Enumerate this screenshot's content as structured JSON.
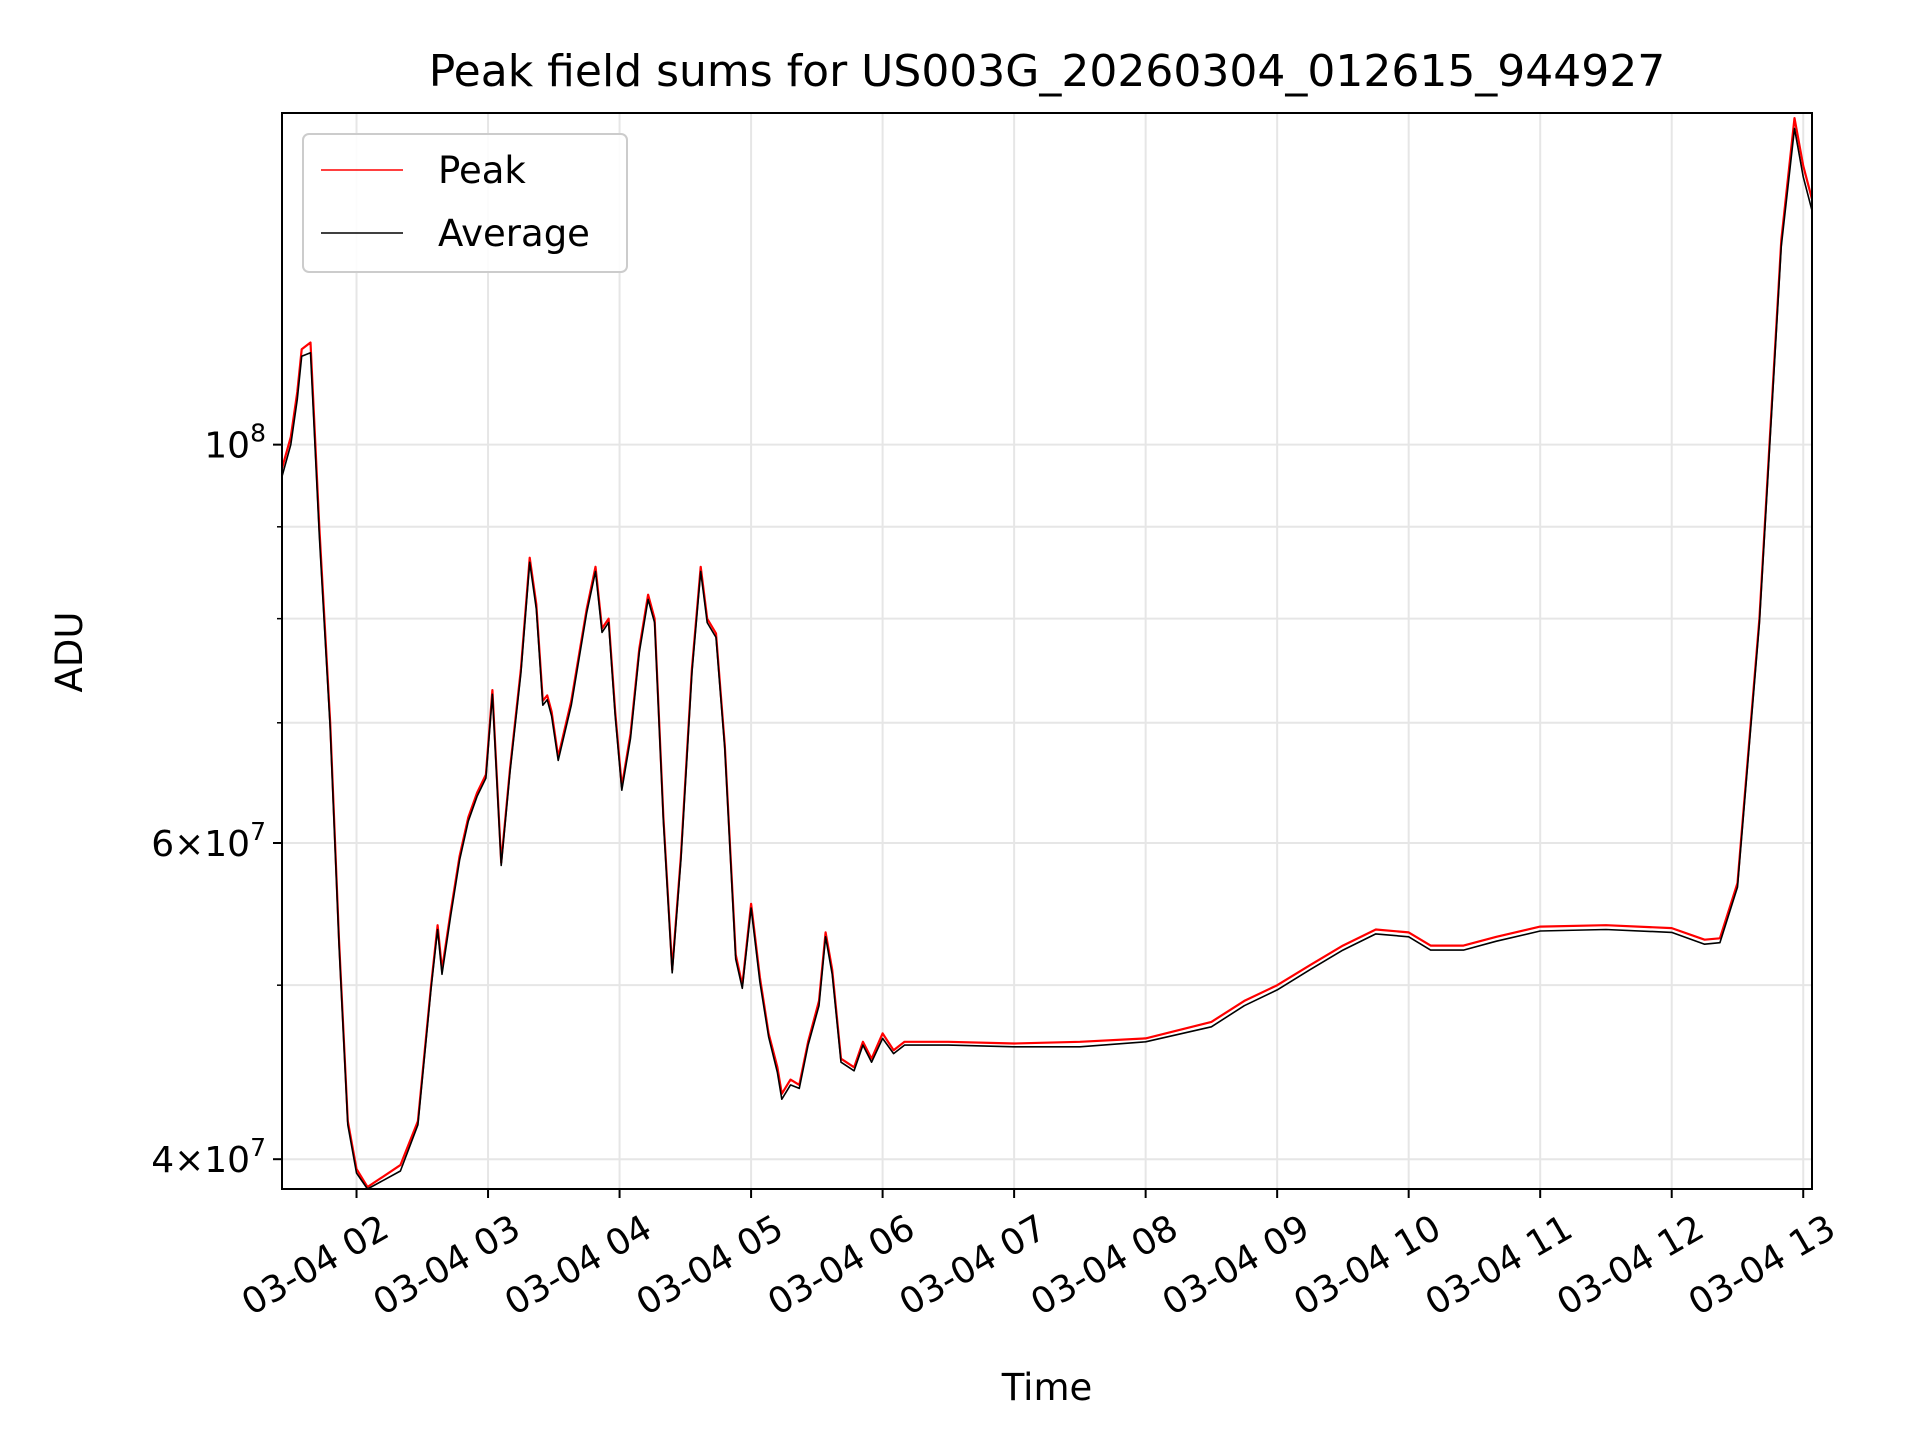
{
  "chart_data": {
    "type": "line",
    "title": "Peak field sums for US003G_20260304_012615_944927",
    "xlabel": "Time",
    "ylabel": "ADU",
    "y_scale": "log",
    "ylim": [
      38500000,
      153000000
    ],
    "xlim": [
      "2026-03-04 01:26",
      "2026-03-04 13:04"
    ],
    "grid": true,
    "legend_position": "top-left",
    "x_ticks": [
      {
        "t": "2026-03-04 02:00",
        "label": "03-04 02"
      },
      {
        "t": "2026-03-04 03:00",
        "label": "03-04 03"
      },
      {
        "t": "2026-03-04 04:00",
        "label": "03-04 04"
      },
      {
        "t": "2026-03-04 05:00",
        "label": "03-04 05"
      },
      {
        "t": "2026-03-04 06:00",
        "label": "03-04 06"
      },
      {
        "t": "2026-03-04 07:00",
        "label": "03-04 07"
      },
      {
        "t": "2026-03-04 08:00",
        "label": "03-04 08"
      },
      {
        "t": "2026-03-04 09:00",
        "label": "03-04 09"
      },
      {
        "t": "2026-03-04 10:00",
        "label": "03-04 10"
      },
      {
        "t": "2026-03-04 11:00",
        "label": "03-04 11"
      },
      {
        "t": "2026-03-04 12:00",
        "label": "03-04 12"
      },
      {
        "t": "2026-03-04 13:00",
        "label": "03-04 13"
      }
    ],
    "y_major_ticks": [
      {
        "value": 40000000,
        "base": "4",
        "exp": "7"
      },
      {
        "value": 60000000,
        "base": "6",
        "exp": "7"
      },
      {
        "value": 100000000,
        "base": "",
        "exp": "8"
      }
    ],
    "y_minor_ticks": [
      50000000,
      70000000,
      80000000,
      90000000
    ],
    "series": [
      {
        "name": "Peak",
        "color": "#ff0000",
        "points": [
          [
            "2026-03-04 01:26",
            97000000
          ],
          [
            "2026-03-04 01:30",
            101000000
          ],
          [
            "2026-03-04 01:33",
            107000000
          ],
          [
            "2026-03-04 01:35",
            113000000
          ],
          [
            "2026-03-04 01:39",
            114000000
          ],
          [
            "2026-03-04 01:43",
            90000000
          ],
          [
            "2026-03-04 01:48",
            70000000
          ],
          [
            "2026-03-04 01:52",
            53000000
          ],
          [
            "2026-03-04 01:56",
            42000000
          ],
          [
            "2026-03-04 02:00",
            39500000
          ],
          [
            "2026-03-04 02:05",
            38600000
          ],
          [
            "2026-03-04 02:20",
            39700000
          ],
          [
            "2026-03-04 02:28",
            42000000
          ],
          [
            "2026-03-04 02:34",
            50000000
          ],
          [
            "2026-03-04 02:37",
            54000000
          ],
          [
            "2026-03-04 02:39",
            51000000
          ],
          [
            "2026-03-04 02:43",
            55000000
          ],
          [
            "2026-03-04 02:47",
            59000000
          ],
          [
            "2026-03-04 02:51",
            62000000
          ],
          [
            "2026-03-04 02:55",
            64000000
          ],
          [
            "2026-03-04 02:59",
            65500000
          ],
          [
            "2026-03-04 03:02",
            73000000
          ],
          [
            "2026-03-04 03:06",
            58500000
          ],
          [
            "2026-03-04 03:10",
            66000000
          ],
          [
            "2026-03-04 03:15",
            75000000
          ],
          [
            "2026-03-04 03:19",
            86500000
          ],
          [
            "2026-03-04 03:22",
            81500000
          ],
          [
            "2026-03-04 03:25",
            72000000
          ],
          [
            "2026-03-04 03:27",
            72500000
          ],
          [
            "2026-03-04 03:29",
            71000000
          ],
          [
            "2026-03-04 03:32",
            67000000
          ],
          [
            "2026-03-04 03:38",
            72000000
          ],
          [
            "2026-03-04 03:45",
            81000000
          ],
          [
            "2026-03-04 03:49",
            85500000
          ],
          [
            "2026-03-04 03:52",
            79000000
          ],
          [
            "2026-03-04 03:55",
            80000000
          ],
          [
            "2026-03-04 03:58",
            71000000
          ],
          [
            "2026-03-04 04:01",
            64500000
          ],
          [
            "2026-03-04 04:05",
            69000000
          ],
          [
            "2026-03-04 04:09",
            77000000
          ],
          [
            "2026-03-04 04:13",
            82500000
          ],
          [
            "2026-03-04 04:16",
            80000000
          ],
          [
            "2026-03-04 04:20",
            62000000
          ],
          [
            "2026-03-04 04:24",
            51000000
          ],
          [
            "2026-03-04 04:28",
            59000000
          ],
          [
            "2026-03-04 04:33",
            75000000
          ],
          [
            "2026-03-04 04:37",
            85500000
          ],
          [
            "2026-03-04 04:40",
            80000000
          ],
          [
            "2026-03-04 04:44",
            78500000
          ],
          [
            "2026-03-04 04:48",
            68000000
          ],
          [
            "2026-03-04 04:53",
            52000000
          ],
          [
            "2026-03-04 04:56",
            50000000
          ],
          [
            "2026-03-04 05:00",
            55500000
          ],
          [
            "2026-03-04 05:04",
            50500000
          ],
          [
            "2026-03-04 05:08",
            47000000
          ],
          [
            "2026-03-04 05:12",
            45000000
          ],
          [
            "2026-03-04 05:14",
            43500000
          ],
          [
            "2026-03-04 05:18",
            44300000
          ],
          [
            "2026-03-04 05:22",
            44000000
          ],
          [
            "2026-03-04 05:26",
            46500000
          ],
          [
            "2026-03-04 05:31",
            49000000
          ],
          [
            "2026-03-04 05:34",
            53500000
          ],
          [
            "2026-03-04 05:37",
            51000000
          ],
          [
            "2026-03-04 05:41",
            45500000
          ],
          [
            "2026-03-04 05:47",
            45000000
          ],
          [
            "2026-03-04 05:51",
            46500000
          ],
          [
            "2026-03-04 05:55",
            45500000
          ],
          [
            "2026-03-04 06:00",
            47000000
          ],
          [
            "2026-03-04 06:05",
            46000000
          ],
          [
            "2026-03-04 06:10",
            46500000
          ],
          [
            "2026-03-04 06:30",
            46500000
          ],
          [
            "2026-03-04 07:00",
            46400000
          ],
          [
            "2026-03-04 07:30",
            46500000
          ],
          [
            "2026-03-04 08:00",
            46700000
          ],
          [
            "2026-03-04 08:30",
            47700000
          ],
          [
            "2026-03-04 08:45",
            49000000
          ],
          [
            "2026-03-04 09:00",
            50000000
          ],
          [
            "2026-03-04 09:15",
            51300000
          ],
          [
            "2026-03-04 09:30",
            52600000
          ],
          [
            "2026-03-04 09:45",
            53700000
          ],
          [
            "2026-03-04 10:00",
            53500000
          ],
          [
            "2026-03-04 10:10",
            52600000
          ],
          [
            "2026-03-04 10:25",
            52600000
          ],
          [
            "2026-03-04 10:40",
            53200000
          ],
          [
            "2026-03-04 11:00",
            53900000
          ],
          [
            "2026-03-04 11:30",
            54000000
          ],
          [
            "2026-03-04 12:00",
            53800000
          ],
          [
            "2026-03-04 12:15",
            53000000
          ],
          [
            "2026-03-04 12:22",
            53100000
          ],
          [
            "2026-03-04 12:30",
            57000000
          ],
          [
            "2026-03-04 12:40",
            80000000
          ],
          [
            "2026-03-04 12:50",
            130000000
          ],
          [
            "2026-03-04 12:56",
            152000000
          ],
          [
            "2026-03-04 13:00",
            143000000
          ],
          [
            "2026-03-04 13:04",
            137000000
          ]
        ]
      },
      {
        "name": "Average",
        "color": "#000000",
        "points": [
          [
            "2026-03-04 01:26",
            96000000
          ],
          [
            "2026-03-04 01:30",
            100000000
          ],
          [
            "2026-03-04 01:33",
            106000000
          ],
          [
            "2026-03-04 01:35",
            112000000
          ],
          [
            "2026-03-04 01:39",
            112500000
          ],
          [
            "2026-03-04 01:43",
            89000000
          ],
          [
            "2026-03-04 01:48",
            69500000
          ],
          [
            "2026-03-04 01:52",
            52700000
          ],
          [
            "2026-03-04 01:56",
            41800000
          ],
          [
            "2026-03-04 02:00",
            39300000
          ],
          [
            "2026-03-04 02:05",
            38500000
          ],
          [
            "2026-03-04 02:20",
            39400000
          ],
          [
            "2026-03-04 02:28",
            41800000
          ],
          [
            "2026-03-04 02:34",
            49800000
          ],
          [
            "2026-03-04 02:37",
            53700000
          ],
          [
            "2026-03-04 02:39",
            50700000
          ],
          [
            "2026-03-04 02:43",
            54700000
          ],
          [
            "2026-03-04 02:47",
            58700000
          ],
          [
            "2026-03-04 02:51",
            61700000
          ],
          [
            "2026-03-04 02:55",
            63700000
          ],
          [
            "2026-03-04 02:59",
            65200000
          ],
          [
            "2026-03-04 03:02",
            72600000
          ],
          [
            "2026-03-04 03:06",
            58300000
          ],
          [
            "2026-03-04 03:10",
            65700000
          ],
          [
            "2026-03-04 03:15",
            74600000
          ],
          [
            "2026-03-04 03:19",
            86000000
          ],
          [
            "2026-03-04 03:22",
            81000000
          ],
          [
            "2026-03-04 03:25",
            71600000
          ],
          [
            "2026-03-04 03:27",
            72100000
          ],
          [
            "2026-03-04 03:29",
            70600000
          ],
          [
            "2026-03-04 03:32",
            66700000
          ],
          [
            "2026-03-04 03:38",
            71600000
          ],
          [
            "2026-03-04 03:45",
            80600000
          ],
          [
            "2026-03-04 03:49",
            85000000
          ],
          [
            "2026-03-04 03:52",
            78600000
          ],
          [
            "2026-03-04 03:55",
            79600000
          ],
          [
            "2026-03-04 03:58",
            70600000
          ],
          [
            "2026-03-04 04:01",
            64200000
          ],
          [
            "2026-03-04 04:05",
            68600000
          ],
          [
            "2026-03-04 04:09",
            76600000
          ],
          [
            "2026-03-04 04:13",
            82000000
          ],
          [
            "2026-03-04 04:16",
            79600000
          ],
          [
            "2026-03-04 04:20",
            61700000
          ],
          [
            "2026-03-04 04:24",
            50800000
          ],
          [
            "2026-03-04 04:28",
            58700000
          ],
          [
            "2026-03-04 04:33",
            74600000
          ],
          [
            "2026-03-04 04:37",
            85000000
          ],
          [
            "2026-03-04 04:40",
            79600000
          ],
          [
            "2026-03-04 04:44",
            78100000
          ],
          [
            "2026-03-04 04:48",
            67700000
          ],
          [
            "2026-03-04 04:53",
            51700000
          ],
          [
            "2026-03-04 04:56",
            49800000
          ],
          [
            "2026-03-04 05:00",
            55200000
          ],
          [
            "2026-03-04 05:04",
            50200000
          ],
          [
            "2026-03-04 05:08",
            46800000
          ],
          [
            "2026-03-04 05:12",
            44700000
          ],
          [
            "2026-03-04 05:14",
            43200000
          ],
          [
            "2026-03-04 05:18",
            44000000
          ],
          [
            "2026-03-04 05:22",
            43800000
          ],
          [
            "2026-03-04 05:26",
            46300000
          ],
          [
            "2026-03-04 05:31",
            48700000
          ],
          [
            "2026-03-04 05:34",
            53200000
          ],
          [
            "2026-03-04 05:37",
            50700000
          ],
          [
            "2026-03-04 05:41",
            45300000
          ],
          [
            "2026-03-04 05:47",
            44800000
          ],
          [
            "2026-03-04 05:51",
            46300000
          ],
          [
            "2026-03-04 05:55",
            45300000
          ],
          [
            "2026-03-04 06:00",
            46700000
          ],
          [
            "2026-03-04 06:05",
            45800000
          ],
          [
            "2026-03-04 06:10",
            46300000
          ],
          [
            "2026-03-04 06:30",
            46300000
          ],
          [
            "2026-03-04 07:00",
            46200000
          ],
          [
            "2026-03-04 07:30",
            46200000
          ],
          [
            "2026-03-04 08:00",
            46500000
          ],
          [
            "2026-03-04 08:30",
            47400000
          ],
          [
            "2026-03-04 08:45",
            48700000
          ],
          [
            "2026-03-04 09:00",
            49700000
          ],
          [
            "2026-03-04 09:15",
            51000000
          ],
          [
            "2026-03-04 09:30",
            52300000
          ],
          [
            "2026-03-04 09:45",
            53400000
          ],
          [
            "2026-03-04 10:00",
            53200000
          ],
          [
            "2026-03-04 10:10",
            52300000
          ],
          [
            "2026-03-04 10:25",
            52300000
          ],
          [
            "2026-03-04 10:40",
            52900000
          ],
          [
            "2026-03-04 11:00",
            53600000
          ],
          [
            "2026-03-04 11:30",
            53700000
          ],
          [
            "2026-03-04 12:00",
            53500000
          ],
          [
            "2026-03-04 12:15",
            52700000
          ],
          [
            "2026-03-04 12:22",
            52800000
          ],
          [
            "2026-03-04 12:30",
            56700000
          ],
          [
            "2026-03-04 12:40",
            79500000
          ],
          [
            "2026-03-04 12:50",
            129000000
          ],
          [
            "2026-03-04 12:56",
            150000000
          ],
          [
            "2026-03-04 13:00",
            141000000
          ],
          [
            "2026-03-04 13:04",
            135000000
          ]
        ]
      }
    ]
  }
}
